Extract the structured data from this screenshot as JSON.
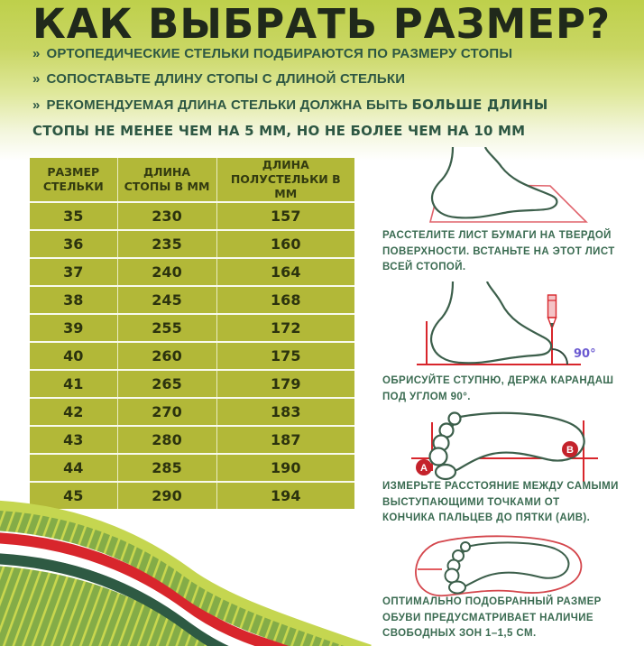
{
  "title": "КАК ВЫБРАТЬ РАЗМЕР?",
  "bullets": [
    {
      "marker": "»",
      "text": "ОРТОПЕДИЧЕСКИЕ СТЕЛЬКИ ПОДБИРАЮТСЯ ПО РАЗМЕРУ СТОПЫ"
    },
    {
      "marker": "»",
      "text": "СОПОСТАВЬТЕ ДЛИНУ СТОПЫ С ДЛИНОЙ СТЕЛЬКИ"
    },
    {
      "marker": "»",
      "normal": "РЕКОМЕНДУЕМАЯ ДЛИНА СТЕЛЬКИ ДОЛЖНА БЫТЬ ",
      "strong": [
        "БОЛЬШЕ ДЛИНЫ",
        "СТОПЫ НЕ МЕНЕЕ ЧЕМ НА 5 ММ, НО НЕ БОЛЕЕ ЧЕМ НА 10 ММ"
      ]
    }
  ],
  "size_table": {
    "columns": [
      [
        "РАЗМЕР",
        "СТЕЛЬКИ"
      ],
      [
        "ДЛИНА",
        "СТОПЫ В ММ"
      ],
      [
        "ДЛИНА",
        "ПОЛУСТЕЛЬКИ В ММ"
      ]
    ],
    "rows": [
      [
        "35",
        "230",
        "157"
      ],
      [
        "36",
        "235",
        "160"
      ],
      [
        "37",
        "240",
        "164"
      ],
      [
        "38",
        "245",
        "168"
      ],
      [
        "39",
        "255",
        "172"
      ],
      [
        "40",
        "260",
        "175"
      ],
      [
        "41",
        "265",
        "179"
      ],
      [
        "42",
        "270",
        "183"
      ],
      [
        "43",
        "280",
        "187"
      ],
      [
        "44",
        "285",
        "190"
      ],
      [
        "45",
        "290",
        "194"
      ]
    ]
  },
  "steps": [
    {
      "caption": [
        "РАССТЕЛИТЕ ЛИСТ БУМАГИ НА ТВЕРДОЙ",
        "ПОВЕРХНОСТИ. ВСТАНЬТЕ НА ЭТОТ ЛИСТ",
        "ВСЕЙ СТОПОЙ."
      ],
      "illustration": "foot-on-paper"
    },
    {
      "caption": [
        "ОБРИСУЙТЕ СТУПНЮ, ДЕРЖА КАРАНДАШ",
        "ПОД УГЛОМ 90°."
      ],
      "illustration": "foot-with-pencil",
      "angle_label": "90°"
    },
    {
      "caption": [
        "ИЗМЕРЬТЕ РАССТОЯНИЕ МЕЖДУ САМЫМИ",
        "ВЫСТУПАЮЩИМИ ТОЧКАМИ ОТ",
        "КОНЧИКА ПАЛЬЦЕВ ДО ПЯТКИ (АИВ)."
      ],
      "illustration": "footprint-a-b",
      "point_a": "А",
      "point_b": "В"
    },
    {
      "caption": [
        "ОПТИМАЛЬНО ПОДОБРАННЫЙ РАЗМЕР",
        "ОБУВИ ПРЕДУСМАТРИВАЕТ НАЛИЧИЕ",
        "СВОБОДНЫХ ЗОН 1–1,5 СМ."
      ],
      "illustration": "footprint-in-insole"
    }
  ],
  "colors": {
    "header_green": "#bed04b",
    "table_olive": "#b2b838",
    "text_dark_green": "#2d5743",
    "caption_green": "#3a6b51",
    "line_art_green": "#3c5f4b",
    "accent_red": "#d8262c",
    "badge_red": "#c4222b",
    "angle_purple": "#6b5ad1"
  }
}
